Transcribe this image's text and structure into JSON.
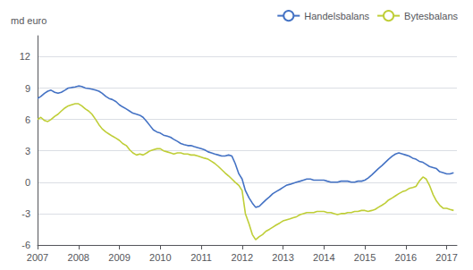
{
  "chart_data": {
    "type": "line",
    "ylabel": "md euro",
    "ylim": [
      -6,
      14
    ],
    "yticks": [
      -6,
      -3,
      0,
      3,
      6,
      9,
      12
    ],
    "xlim": [
      2007.0,
      2017.25
    ],
    "xticks": [
      2007,
      2008,
      2009,
      2010,
      2011,
      2012,
      2013,
      2014,
      2015,
      2016,
      2017
    ],
    "grid": true,
    "legend": "upper right",
    "x": [
      2007.0,
      2007.08,
      2007.17,
      2007.25,
      2007.33,
      2007.42,
      2007.5,
      2007.58,
      2007.67,
      2007.75,
      2007.83,
      2007.92,
      2008.0,
      2008.08,
      2008.17,
      2008.25,
      2008.33,
      2008.42,
      2008.5,
      2008.58,
      2008.67,
      2008.75,
      2008.83,
      2008.92,
      2009.0,
      2009.08,
      2009.17,
      2009.25,
      2009.33,
      2009.42,
      2009.5,
      2009.58,
      2009.67,
      2009.75,
      2009.83,
      2009.92,
      2010.0,
      2010.08,
      2010.17,
      2010.25,
      2010.33,
      2010.42,
      2010.5,
      2010.58,
      2010.67,
      2010.75,
      2010.83,
      2010.92,
      2011.0,
      2011.08,
      2011.17,
      2011.25,
      2011.33,
      2011.42,
      2011.5,
      2011.58,
      2011.67,
      2011.75,
      2011.83,
      2011.92,
      2012.0,
      2012.08,
      2012.17,
      2012.25,
      2012.33,
      2012.42,
      2012.5,
      2012.58,
      2012.67,
      2012.75,
      2012.83,
      2012.92,
      2013.0,
      2013.08,
      2013.17,
      2013.25,
      2013.33,
      2013.42,
      2013.5,
      2013.58,
      2013.67,
      2013.75,
      2013.83,
      2013.92,
      2014.0,
      2014.08,
      2014.17,
      2014.25,
      2014.33,
      2014.42,
      2014.5,
      2014.58,
      2014.67,
      2014.75,
      2014.83,
      2014.92,
      2015.0,
      2015.08,
      2015.17,
      2015.25,
      2015.33,
      2015.42,
      2015.5,
      2015.58,
      2015.67,
      2015.75,
      2015.83,
      2015.92,
      2016.0,
      2016.08,
      2016.17,
      2016.25,
      2016.33,
      2016.42,
      2016.5,
      2016.58,
      2016.67,
      2016.75,
      2016.83,
      2016.92,
      2017.0,
      2017.08,
      2017.17
    ],
    "series": [
      {
        "name": "Handelsbalans",
        "color": "#4472C4",
        "values": [
          8.0,
          8.2,
          8.5,
          8.7,
          8.8,
          8.6,
          8.5,
          8.6,
          8.8,
          9.0,
          9.05,
          9.1,
          9.2,
          9.15,
          9.0,
          8.95,
          8.9,
          8.8,
          8.7,
          8.5,
          8.2,
          8.0,
          7.9,
          7.7,
          7.4,
          7.2,
          7.0,
          6.8,
          6.6,
          6.5,
          6.4,
          6.2,
          5.8,
          5.4,
          5.0,
          4.8,
          4.7,
          4.5,
          4.4,
          4.3,
          4.1,
          3.9,
          3.7,
          3.6,
          3.5,
          3.5,
          3.4,
          3.3,
          3.2,
          3.1,
          2.9,
          2.8,
          2.7,
          2.6,
          2.5,
          2.5,
          2.6,
          2.5,
          1.8,
          0.8,
          0.3,
          -0.8,
          -1.5,
          -2.0,
          -2.4,
          -2.3,
          -2.0,
          -1.7,
          -1.4,
          -1.1,
          -0.9,
          -0.7,
          -0.5,
          -0.3,
          -0.2,
          -0.1,
          0.0,
          0.1,
          0.2,
          0.3,
          0.3,
          0.2,
          0.2,
          0.2,
          0.2,
          0.1,
          0.0,
          0.0,
          0.0,
          0.1,
          0.1,
          0.1,
          0.0,
          0.0,
          0.1,
          0.1,
          0.2,
          0.4,
          0.7,
          1.0,
          1.3,
          1.6,
          1.9,
          2.2,
          2.5,
          2.7,
          2.8,
          2.7,
          2.6,
          2.5,
          2.3,
          2.2,
          2.0,
          1.9,
          1.7,
          1.5,
          1.4,
          1.3,
          1.0,
          0.9,
          0.8,
          0.8,
          0.9
        ]
      },
      {
        "name": "Bytesbalans",
        "color": "#BFCE37",
        "values": [
          6.0,
          6.2,
          5.9,
          5.8,
          6.0,
          6.3,
          6.5,
          6.8,
          7.1,
          7.3,
          7.4,
          7.5,
          7.5,
          7.3,
          7.0,
          6.8,
          6.5,
          6.0,
          5.5,
          5.1,
          4.8,
          4.6,
          4.4,
          4.2,
          4.0,
          3.7,
          3.5,
          3.1,
          2.8,
          2.6,
          2.7,
          2.6,
          2.8,
          3.0,
          3.1,
          3.2,
          3.2,
          3.0,
          2.9,
          2.8,
          2.7,
          2.8,
          2.8,
          2.7,
          2.7,
          2.6,
          2.6,
          2.5,
          2.4,
          2.3,
          2.2,
          2.0,
          1.8,
          1.5,
          1.2,
          0.9,
          0.6,
          0.3,
          0.0,
          -0.3,
          -0.8,
          -3.0,
          -4.0,
          -5.0,
          -5.5,
          -5.2,
          -5.0,
          -4.7,
          -4.5,
          -4.3,
          -4.1,
          -3.9,
          -3.7,
          -3.6,
          -3.5,
          -3.4,
          -3.3,
          -3.1,
          -3.0,
          -2.9,
          -2.9,
          -2.9,
          -2.8,
          -2.8,
          -2.8,
          -2.9,
          -2.9,
          -3.0,
          -3.1,
          -3.0,
          -3.0,
          -2.9,
          -2.9,
          -2.8,
          -2.8,
          -2.7,
          -2.7,
          -2.8,
          -2.7,
          -2.6,
          -2.4,
          -2.2,
          -2.0,
          -1.7,
          -1.5,
          -1.3,
          -1.1,
          -0.9,
          -0.8,
          -0.6,
          -0.5,
          -0.4,
          0.1,
          0.5,
          0.3,
          -0.3,
          -1.2,
          -1.8,
          -2.2,
          -2.5,
          -2.5,
          -2.6,
          -2.7
        ]
      }
    ]
  }
}
